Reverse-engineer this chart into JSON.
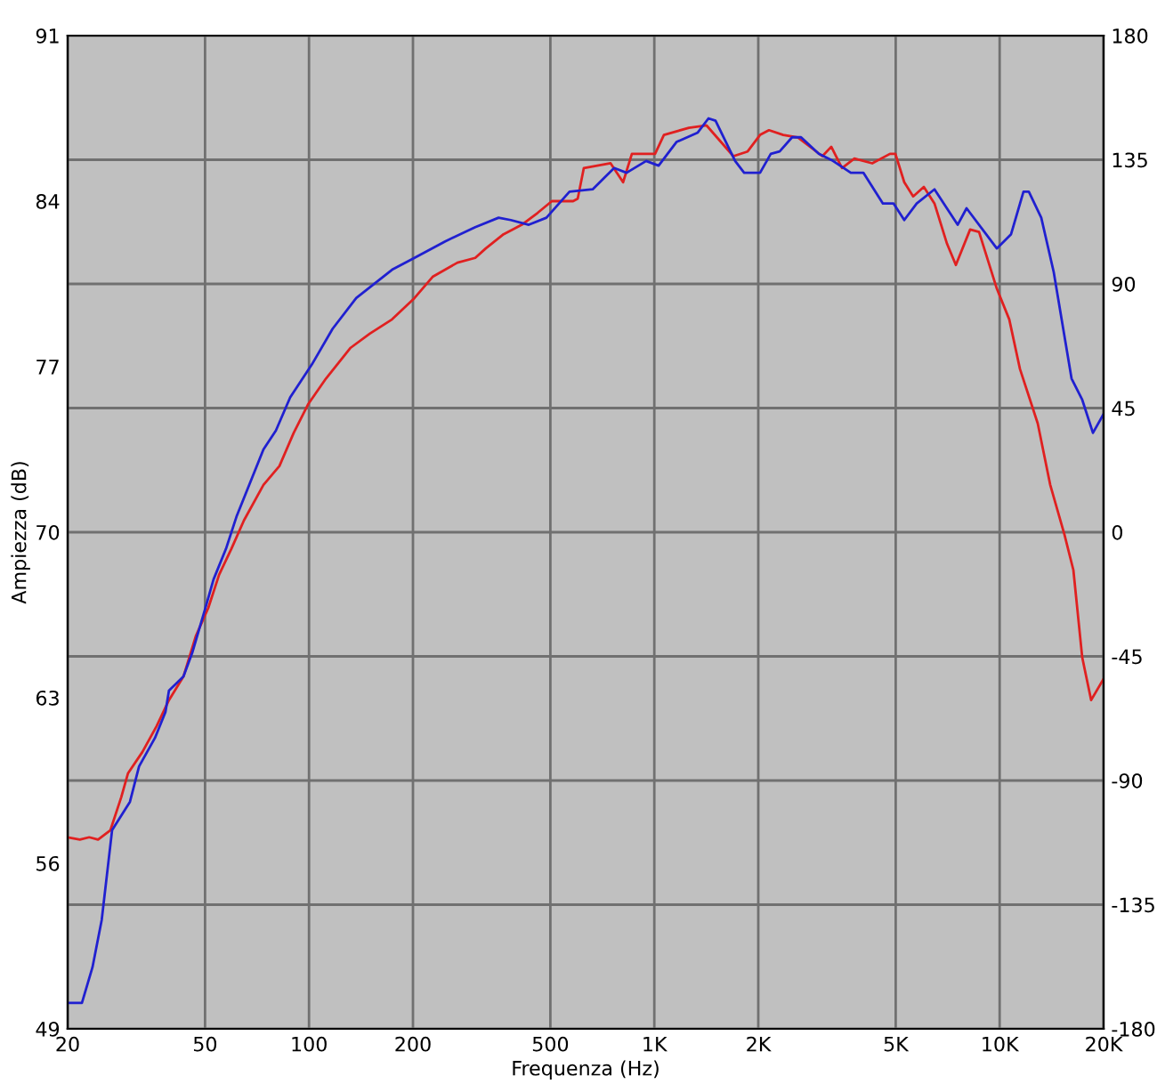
{
  "chart_data": {
    "type": "line",
    "xlabel": "Frequenza (Hz)",
    "ylabel": "Ampiezza (dB)",
    "log": "x",
    "grid": true,
    "marker": "none",
    "line_style": "solid",
    "xlim": [
      20,
      20000
    ],
    "xticks": [
      20,
      50,
      100,
      200,
      500,
      {
        "value": 1000,
        "label": "1K"
      },
      {
        "value": 2000,
        "label": "2K"
      },
      {
        "value": 5000,
        "label": "5K"
      },
      {
        "value": 10000,
        "label": "10K"
      },
      {
        "value": 20000,
        "label": "20K"
      }
    ],
    "ylim": [
      49,
      91
    ],
    "yticks": [
      49,
      56,
      63,
      70,
      77,
      84,
      91
    ],
    "y2lim": [
      -180,
      180
    ],
    "y2ticks": [
      -180,
      -135,
      -90,
      -45,
      0,
      45,
      90,
      135,
      180
    ],
    "series": [
      {
        "color": "#e02020",
        "x": [
          20,
          21.7,
          23.1,
          24.5,
          26.6,
          28.6,
          29.9,
          32.9,
          36.2,
          39.3,
          43.3,
          47,
          51.1,
          54.9,
          59.6,
          64.8,
          73.8,
          82.1,
          90.3,
          99.3,
          112,
          132,
          150,
          174,
          202,
          228,
          269,
          303,
          325,
          366,
          413,
          459,
          505,
          582,
          600,
          625,
          747,
          812,
          861,
          1005,
          1066,
          1259,
          1417,
          1694,
          1863,
          2024,
          2148,
          2362,
          2598,
          3066,
          3254,
          3496,
          3796,
          4276,
          4813,
          4990,
          5294,
          5618,
          6032,
          6476,
          7039,
          7468,
          8213,
          8716,
          9813,
          10662,
          11451,
          12891,
          14013,
          15404,
          16350,
          17346,
          18406,
          20000
        ],
        "values": [
          57.1,
          57.0,
          57.1,
          57.0,
          57.4,
          58.8,
          59.8,
          60.7,
          61.8,
          62.9,
          63.9,
          65.6,
          66.8,
          68.2,
          69.3,
          70.5,
          72.0,
          72.8,
          74.2,
          75.4,
          76.5,
          77.8,
          78.4,
          79.0,
          79.9,
          80.8,
          81.4,
          81.6,
          82.0,
          82.6,
          83.0,
          83.5,
          84.0,
          84.0,
          84.1,
          85.4,
          85.6,
          84.8,
          86.0,
          86.0,
          86.8,
          87.1,
          87.2,
          85.9,
          86.1,
          86.8,
          87.0,
          86.8,
          86.7,
          85.9,
          86.3,
          85.4,
          85.8,
          85.6,
          86.0,
          86.0,
          84.8,
          84.2,
          84.6,
          83.9,
          82.2,
          81.3,
          82.8,
          82.7,
          80.3,
          79.0,
          76.9,
          74.6,
          72.0,
          69.9,
          68.4,
          64.7,
          62.9,
          63.8
        ]
      },
      {
        "color": "#2020d0",
        "x": [
          20,
          22,
          23.6,
          25.1,
          26.9,
          30.3,
          32.2,
          35.8,
          38.4,
          39.3,
          43.3,
          45.9,
          49.9,
          52.9,
          57.5,
          61.8,
          73.8,
          80.2,
          88.2,
          102,
          117,
          137,
          174,
          202,
          248,
          303,
          354,
          384,
          433,
          487,
          568,
          663,
          765,
          831,
          947,
          1029,
          1159,
          1336,
          1435,
          1504,
          1714,
          1820,
          2024,
          2174,
          2307,
          2506,
          2660,
          2994,
          3293,
          3707,
          4030,
          4592,
          4931,
          5294,
          5752,
          6476,
          7558,
          8021,
          9813,
          10790,
          11722,
          12148,
          13198,
          14342,
          16152,
          17346,
          18628,
          20000
        ],
        "values": [
          50.1,
          50.1,
          51.6,
          53.6,
          57.4,
          58.6,
          60.1,
          61.3,
          62.4,
          63.3,
          63.9,
          64.9,
          66.7,
          68.0,
          69.3,
          70.7,
          73.5,
          74.3,
          75.7,
          77.1,
          78.6,
          79.9,
          81.1,
          81.6,
          82.3,
          82.9,
          83.3,
          83.2,
          83.0,
          83.3,
          84.4,
          84.5,
          85.4,
          85.2,
          85.7,
          85.5,
          86.5,
          86.9,
          87.5,
          87.4,
          85.7,
          85.2,
          85.2,
          86.0,
          86.1,
          86.7,
          86.7,
          86.0,
          85.7,
          85.2,
          85.2,
          83.9,
          83.9,
          83.2,
          83.9,
          84.5,
          83.0,
          83.7,
          82.0,
          82.6,
          84.4,
          84.4,
          83.3,
          81.0,
          76.5,
          75.6,
          74.2,
          75.0
        ]
      }
    ]
  }
}
